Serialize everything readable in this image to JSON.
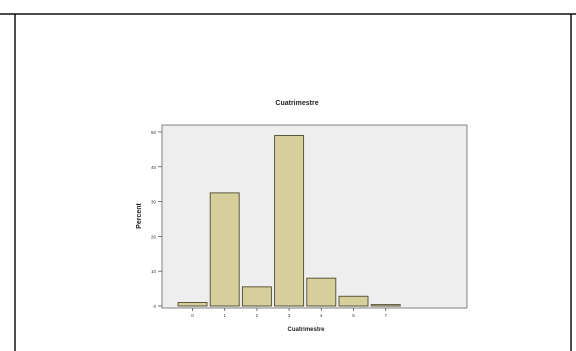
{
  "chart_data": {
    "type": "bar",
    "title": "Cuatrimestre",
    "xlabel": "Cuatrimestre",
    "ylabel": "Percent",
    "categories": [
      "0",
      "1",
      "2",
      "3",
      "4",
      "5",
      "7"
    ],
    "values": [
      1.0,
      32.5,
      5.5,
      49.0,
      8.0,
      2.8,
      0.4
    ],
    "ylim": [
      0,
      52
    ],
    "yticks": [
      "0",
      "10",
      "20",
      "30",
      "40",
      "50"
    ],
    "ytick_values": [
      0,
      10,
      20,
      30,
      40,
      50
    ],
    "grid": false,
    "legend": "none",
    "colors": {
      "bar_fill": "#d6cf9c",
      "bar_stroke": "#4d4a2e",
      "plot_bg": "#eeeeee",
      "axis": "#555555",
      "frame": "#111111"
    }
  }
}
